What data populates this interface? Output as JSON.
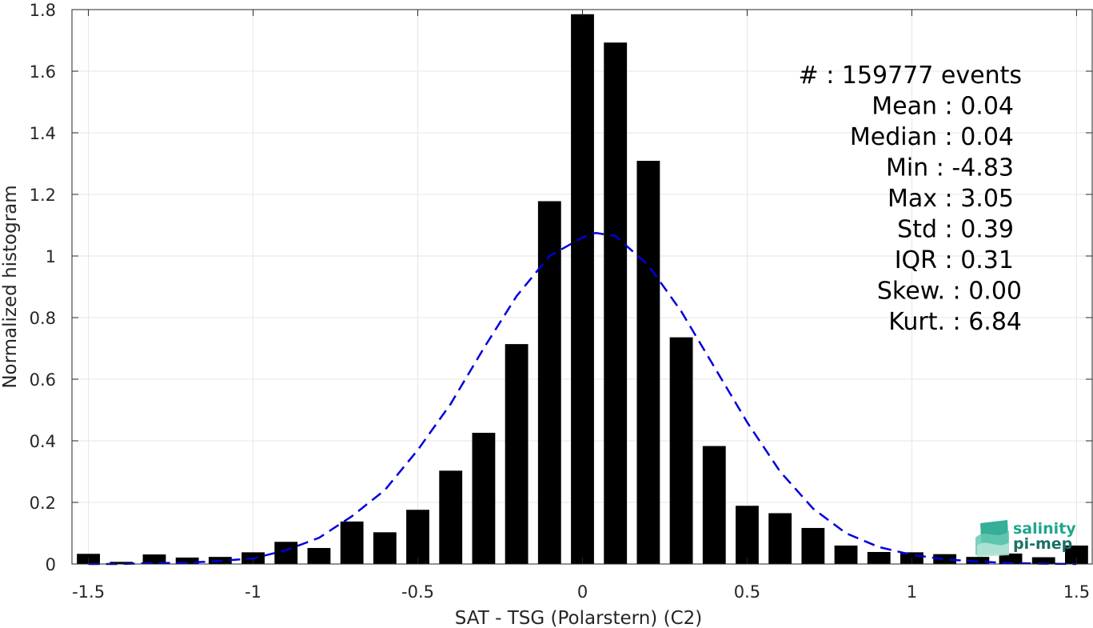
{
  "colors": {
    "bar": "#000000",
    "fit_curve": "#0000dd",
    "grid": "#e6e6e6",
    "axis": "#262626",
    "logo": "#1fa68c"
  },
  "stats_box": [
    "#  : 159777 events",
    "Mean : 0.04",
    "Median : 0.04",
    "Min : -4.83",
    "Max : 3.05",
    "Std : 0.39",
    "IQR : 0.31",
    "Skew. : 0.00",
    "Kurt. : 6.84"
  ],
  "logo": {
    "line1": "salinity",
    "line2": "pi-mep",
    "icon": "wave-logo-icon"
  },
  "chart_data": {
    "type": "bar",
    "xlabel": "SAT - TSG (Polarstern) (C2)",
    "ylabel": "Normalized histogram",
    "xlim": [
      -1.55,
      1.55
    ],
    "ylim": [
      0,
      1.8
    ],
    "xticks": [
      -1.5,
      -1,
      -0.5,
      0,
      0.5,
      1,
      1.5
    ],
    "xtick_labels": [
      "-1.5",
      "-1",
      "-0.5",
      "0",
      "0.5",
      "1",
      "1.5"
    ],
    "yticks": [
      0,
      0.2,
      0.4,
      0.6,
      0.8,
      1,
      1.2,
      1.4,
      1.6,
      1.8
    ],
    "ytick_labels": [
      "0",
      "0.2",
      "0.4",
      "0.6",
      "0.8",
      "1",
      "1.2",
      "1.4",
      "1.6",
      "1.8"
    ],
    "grid": true,
    "bin_width": 0.1,
    "x": [
      -1.5,
      -1.4,
      -1.3,
      -1.2,
      -1.1,
      -1.0,
      -0.9,
      -0.8,
      -0.7,
      -0.6,
      -0.5,
      -0.4,
      -0.3,
      -0.2,
      -0.1,
      0.0,
      0.1,
      0.2,
      0.3,
      0.4,
      0.5,
      0.6,
      0.7,
      0.8,
      0.9,
      1.0,
      1.1,
      1.2,
      1.3,
      1.4,
      1.5
    ],
    "values": [
      0.033,
      0.007,
      0.031,
      0.021,
      0.023,
      0.038,
      0.072,
      0.052,
      0.138,
      0.103,
      0.176,
      0.303,
      0.426,
      0.714,
      1.178,
      1.785,
      1.693,
      1.309,
      0.736,
      0.383,
      0.189,
      0.165,
      0.117,
      0.06,
      0.039,
      0.038,
      0.032,
      0.023,
      0.034,
      0.022,
      0.06
    ],
    "fit": {
      "style": "dashed",
      "x": [
        -1.5,
        -1.4,
        -1.3,
        -1.2,
        -1.1,
        -1.0,
        -0.9,
        -0.8,
        -0.7,
        -0.6,
        -0.5,
        -0.4,
        -0.3,
        -0.2,
        -0.1,
        0.0,
        0.04,
        0.1,
        0.2,
        0.3,
        0.4,
        0.5,
        0.6,
        0.7,
        0.8,
        0.9,
        1.0,
        1.1,
        1.2,
        1.3,
        1.4,
        1.5
      ],
      "y": [
        0.0,
        0.0,
        0.003,
        0.004,
        0.01,
        0.018,
        0.045,
        0.085,
        0.155,
        0.24,
        0.37,
        0.52,
        0.7,
        0.87,
        1.0,
        1.06,
        1.075,
        1.065,
        0.97,
        0.82,
        0.64,
        0.46,
        0.3,
        0.18,
        0.1,
        0.055,
        0.03,
        0.015,
        0.008,
        0.003,
        0.001,
        0.0
      ]
    }
  }
}
